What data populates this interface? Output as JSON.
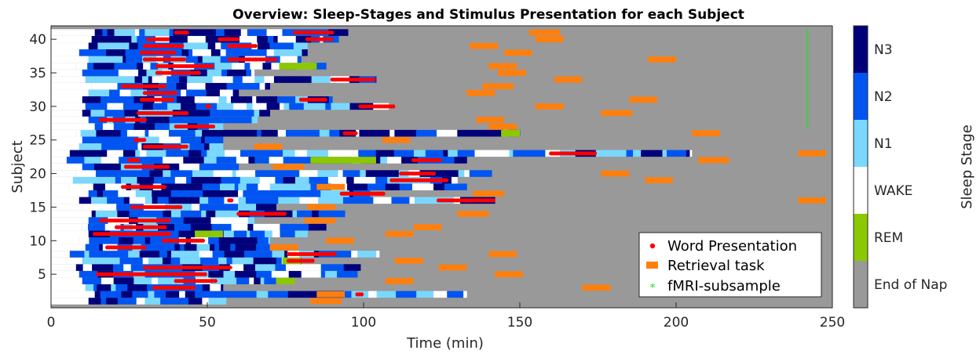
{
  "chart_data": {
    "type": "heatmap",
    "title": "Overview: Sleep-Stages and Stimulus Presentation for each Subject",
    "xlabel": "Time (min)",
    "ylabel": "Subject",
    "xlim": [
      0,
      250
    ],
    "ylim": [
      0,
      42
    ],
    "xticks": [
      0,
      50,
      100,
      150,
      200,
      250
    ],
    "yticks": [
      5,
      10,
      15,
      20,
      25,
      30,
      35,
      40
    ],
    "grid": false,
    "legend_position": "bottom-right",
    "legend": [
      {
        "label": "Word Presentation",
        "marker": "dot",
        "color": "#ff0000"
      },
      {
        "label": "Retrieval task",
        "marker": "bar",
        "color": "#ff7f0e"
      },
      {
        "label": "fMRI-subsample",
        "marker": "star",
        "color": "#22dd22"
      }
    ],
    "colorbar": {
      "label": "Sleep Stage",
      "stages": [
        {
          "name": "N3",
          "color": "#00007a"
        },
        {
          "name": "N2",
          "color": "#0055f2"
        },
        {
          "name": "N1",
          "color": "#7ad8ff"
        },
        {
          "name": "WAKE",
          "color": "#ffffff"
        },
        {
          "name": "REM",
          "color": "#8cc800"
        },
        {
          "name": "End of Nap",
          "color": "#999999"
        }
      ]
    },
    "subjects": [
      {
        "id": 1,
        "start": 12,
        "end": 56
      },
      {
        "id": 2,
        "start": 14,
        "end": 133,
        "words": [
          [
            98,
            100
          ]
        ]
      },
      {
        "id": 3,
        "start": 11,
        "end": 55,
        "words": [
          [
            33,
            46
          ]
        ]
      },
      {
        "id": 4,
        "start": 10,
        "end": 72,
        "words": [
          [
            40,
            53
          ]
        ],
        "rem": [
          [
            72,
            78
          ]
        ]
      },
      {
        "id": 5,
        "start": 9,
        "end": 98,
        "words": [
          [
            15,
            50
          ]
        ]
      },
      {
        "id": 6,
        "start": 8,
        "end": 99,
        "words": [
          [
            30,
            58
          ]
        ]
      },
      {
        "id": 7,
        "start": 10,
        "end": 80,
        "words": [
          [
            76,
            84
          ]
        ],
        "rem": [
          [
            74,
            80
          ]
        ]
      },
      {
        "id": 8,
        "start": 6,
        "end": 105,
        "words": [
          [
            76,
            91
          ]
        ]
      },
      {
        "id": 9,
        "start": 11,
        "end": 70,
        "words": [
          [
            18,
            30
          ]
        ]
      },
      {
        "id": 10,
        "start": 9,
        "end": 70,
        "words": [
          [
            36,
            49
          ]
        ]
      },
      {
        "id": 11,
        "start": 12,
        "end": 82,
        "words": [
          [
            14,
            38
          ]
        ],
        "rem": [
          [
            46,
            55
          ]
        ]
      },
      {
        "id": 12,
        "start": 10,
        "end": 88,
        "words": [
          [
            21,
            37
          ]
        ]
      },
      {
        "id": 13,
        "start": 12,
        "end": 65,
        "words": [
          [
            16,
            38
          ]
        ]
      },
      {
        "id": 14,
        "start": 13,
        "end": 94,
        "words": [
          [
            60,
            75
          ]
        ]
      },
      {
        "id": 15,
        "start": 10,
        "end": 72,
        "words": [
          [
            26,
            42
          ]
        ]
      },
      {
        "id": 16,
        "start": 9,
        "end": 142,
        "words": [
          [
            57,
            58
          ],
          [
            124,
            142
          ]
        ]
      },
      {
        "id": 17,
        "start": 12,
        "end": 102,
        "words": [
          [
            93,
            107
          ]
        ]
      },
      {
        "id": 18,
        "start": 6,
        "end": 133,
        "words": [
          [
            23,
            37
          ]
        ]
      },
      {
        "id": 19,
        "start": 7,
        "end": 130,
        "words": [
          [
            109,
            127
          ]
        ]
      },
      {
        "id": 20,
        "start": 8,
        "end": 141,
        "words": [
          [
            112,
            123
          ]
        ]
      },
      {
        "id": 21,
        "start": 10,
        "end": 60,
        "words": [
          [
            24,
            38
          ]
        ]
      },
      {
        "id": 22,
        "start": 5,
        "end": 133,
        "words": [
          [
            25,
            28
          ],
          [
            116,
            125
          ]
        ],
        "rem": [
          [
            83,
            104
          ]
        ]
      },
      {
        "id": 23,
        "start": 6,
        "end": 205,
        "words": [
          [
            160,
            174
          ]
        ]
      },
      {
        "id": 24,
        "start": 9,
        "end": 55,
        "words": [
          [
            30,
            44
          ]
        ]
      },
      {
        "id": 25,
        "start": 10,
        "end": 55,
        "words": [
          [
            27,
            30
          ]
        ]
      },
      {
        "id": 26,
        "start": 8,
        "end": 150,
        "words": [
          [
            94,
            98
          ]
        ],
        "rem": [
          [
            144,
            150
          ]
        ]
      },
      {
        "id": 27,
        "start": 14,
        "end": 55,
        "words": [
          [
            40,
            52
          ]
        ]
      },
      {
        "id": 28,
        "start": 12,
        "end": 66,
        "words": [
          [
            16,
            30
          ]
        ]
      },
      {
        "id": 29,
        "start": 10,
        "end": 70,
        "words": [
          [
            28,
            44
          ]
        ]
      },
      {
        "id": 30,
        "start": 11,
        "end": 108,
        "words": [
          [
            50,
            51
          ],
          [
            99,
            110
          ]
        ]
      },
      {
        "id": 31,
        "start": 10,
        "end": 90,
        "words": [
          [
            29,
            39
          ],
          [
            80,
            88
          ]
        ]
      },
      {
        "id": 32,
        "start": 12,
        "end": 60,
        "words": [
          [
            30,
            40
          ]
        ]
      },
      {
        "id": 33,
        "start": 13,
        "end": 70,
        "words": [
          [
            23,
            37
          ]
        ]
      },
      {
        "id": 34,
        "start": 11,
        "end": 104,
        "words": [
          [
            90,
            104
          ]
        ]
      },
      {
        "id": 35,
        "start": 10,
        "end": 65,
        "words": [
          [
            34,
            48
          ]
        ]
      },
      {
        "id": 36,
        "start": 8,
        "end": 88,
        "words": [
          [
            34,
            52
          ]
        ],
        "rem": [
          [
            73,
            85
          ]
        ]
      },
      {
        "id": 37,
        "start": 12,
        "end": 80,
        "words": [
          [
            30,
            43
          ],
          [
            57,
            72
          ]
        ]
      },
      {
        "id": 38,
        "start": 9,
        "end": 82,
        "words": [
          [
            29,
            40
          ]
        ]
      },
      {
        "id": 39,
        "start": 12,
        "end": 82,
        "words": [
          [
            30,
            42
          ],
          [
            57,
            66
          ]
        ]
      },
      {
        "id": 40,
        "start": 13,
        "end": 92,
        "words": [
          [
            31,
            38
          ],
          [
            54,
            60
          ],
          [
            82,
            90
          ]
        ]
      },
      {
        "id": 41,
        "start": 14,
        "end": 95,
        "words": [
          [
            40,
            44
          ],
          [
            78,
            90
          ]
        ]
      }
    ],
    "retrieval_tasks": [
      {
        "subject": 1,
        "start": 83,
        "end": 93
      },
      {
        "subject": 2,
        "start": 85,
        "end": 94
      },
      {
        "subject": 3,
        "start": 170,
        "end": 179
      },
      {
        "subject": 4,
        "start": 107,
        "end": 116
      },
      {
        "subject": 5,
        "start": 142,
        "end": 151
      },
      {
        "subject": 6,
        "start": 124,
        "end": 133
      },
      {
        "subject": 7,
        "start": 110,
        "end": 119
      },
      {
        "subject": 8,
        "start": 140,
        "end": 149
      },
      {
        "subject": 9,
        "start": 70,
        "end": 79
      },
      {
        "subject": 10,
        "start": 88,
        "end": 97
      },
      {
        "subject": 11,
        "start": 107,
        "end": 116
      },
      {
        "subject": 12,
        "start": 116,
        "end": 125
      },
      {
        "subject": 13,
        "start": 81,
        "end": 91
      },
      {
        "subject": 14,
        "start": 130,
        "end": 140
      },
      {
        "subject": 15,
        "start": 82,
        "end": 91
      },
      {
        "subject": 16,
        "start": 239,
        "end": 248
      },
      {
        "subject": 17,
        "start": 135,
        "end": 145
      },
      {
        "subject": 18,
        "start": 85,
        "end": 94
      },
      {
        "subject": 19,
        "start": 190,
        "end": 199
      },
      {
        "subject": 20,
        "start": 176,
        "end": 185
      },
      {
        "subject": 21,
        "start": 71,
        "end": 81
      },
      {
        "subject": 22,
        "start": 207,
        "end": 217
      },
      {
        "subject": 23,
        "start": 239,
        "end": 248
      },
      {
        "subject": 24,
        "start": 65,
        "end": 74
      },
      {
        "subject": 25,
        "start": 106,
        "end": 115
      },
      {
        "subject": 26,
        "start": 205,
        "end": 214
      },
      {
        "subject": 27,
        "start": 140,
        "end": 149
      },
      {
        "subject": 28,
        "start": 136,
        "end": 145
      },
      {
        "subject": 29,
        "start": 176,
        "end": 186
      },
      {
        "subject": 30,
        "start": 155,
        "end": 164
      },
      {
        "subject": 31,
        "start": 185,
        "end": 194
      },
      {
        "subject": 32,
        "start": 133,
        "end": 142
      },
      {
        "subject": 33,
        "start": 138,
        "end": 148
      },
      {
        "subject": 34,
        "start": 161,
        "end": 170
      },
      {
        "subject": 35,
        "start": 143,
        "end": 152
      },
      {
        "subject": 36,
        "start": 140,
        "end": 149
      },
      {
        "subject": 37,
        "start": 191,
        "end": 200
      },
      {
        "subject": 38,
        "start": 145,
        "end": 154
      },
      {
        "subject": 39,
        "start": 134,
        "end": 143
      },
      {
        "subject": 40,
        "start": 155,
        "end": 164
      },
      {
        "subject": 41,
        "start": 153,
        "end": 163
      }
    ],
    "fmri_subsample": {
      "time": 242,
      "subjects": [
        27,
        28,
        29,
        30,
        31,
        32,
        33,
        34,
        35,
        36,
        37,
        38,
        39,
        40,
        41
      ]
    }
  }
}
